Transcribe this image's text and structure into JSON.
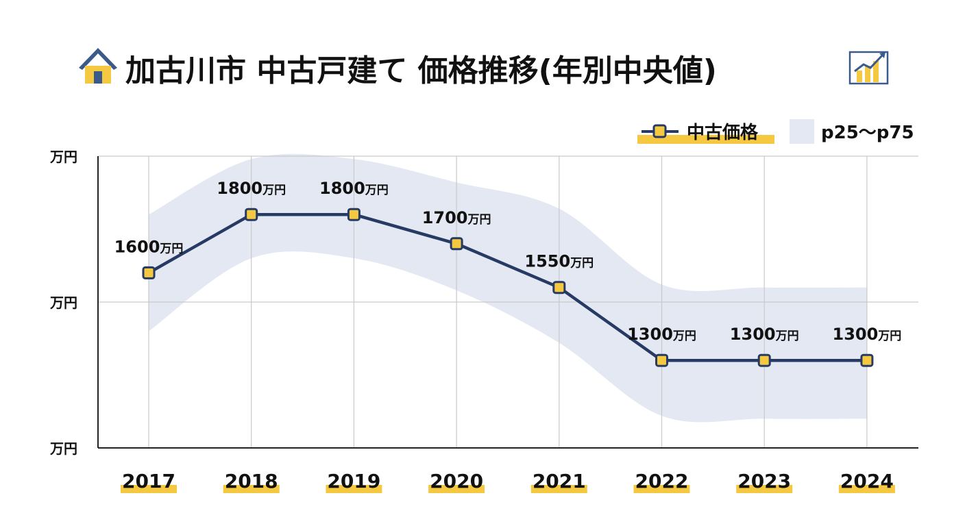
{
  "chart_data": {
    "type": "line",
    "title": "加古川市 中古戸建て 価格推移(年別中央値)",
    "unit": "万円",
    "categories": [
      "2017",
      "2018",
      "2019",
      "2020",
      "2021",
      "2022",
      "2023",
      "2024"
    ],
    "series": [
      {
        "name": "中古価格",
        "values": [
          1600,
          1800,
          1800,
          1700,
          1550,
          1300,
          1300,
          1300
        ],
        "labels": [
          "1600",
          "1800",
          "1800",
          "1700",
          "1550",
          "1300",
          "1300",
          "1300"
        ]
      }
    ],
    "band": {
      "name": "p25〜p75",
      "p75": [
        1800,
        1990,
        1990,
        1910,
        1820,
        1560,
        1550,
        1550
      ],
      "p25": [
        1400,
        1650,
        1650,
        1540,
        1360,
        1110,
        1100,
        1100
      ]
    },
    "yticks": [
      {
        "value": 2000,
        "label": "万円"
      },
      {
        "value": 1500,
        "label": "万円"
      },
      {
        "value": 1000,
        "label": "万円"
      }
    ],
    "ylim": [
      1000,
      2000
    ],
    "grid": true,
    "legend_position": "top-right",
    "colors": {
      "line": "#263a64",
      "marker_fill": "#f5c842",
      "band": "#e3e8f2",
      "highlight": "#f5c842",
      "grid": "#c9c9c9",
      "axis": "#222222",
      "house_body": "#f5c842",
      "house_roof": "#3a5a8c"
    },
    "icons": {
      "title_left": "house-icon",
      "title_right": "rising-chart-icon"
    }
  }
}
